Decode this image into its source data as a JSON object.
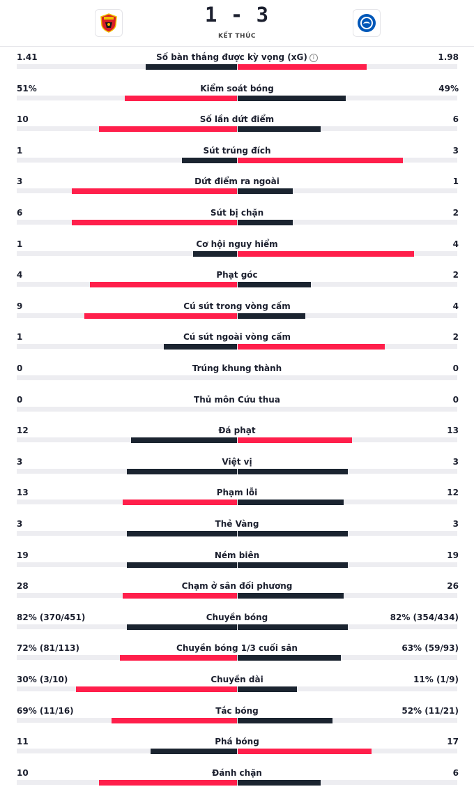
{
  "header": {
    "score": "1 - 3",
    "status": "KẾT THÚC",
    "home_logo_icon": "manchester-united-crest-icon",
    "away_logo_icon": "brighton-crest-icon"
  },
  "colors": {
    "highlight": "#ff1f4b",
    "neutral": "#1b2430",
    "track": "#ededf1"
  },
  "stats": [
    {
      "label": "Số bàn thắng được kỳ vọng (xG)",
      "home": "1.41",
      "away": "1.98",
      "home_share": 0.416,
      "away_share": 0.584,
      "winner": "away",
      "info": true
    },
    {
      "label": "Kiểm soát bóng",
      "home": "51%",
      "away": "49%",
      "home_share": 0.51,
      "away_share": 0.49,
      "winner": "home"
    },
    {
      "label": "Số lần dứt điểm",
      "home": "10",
      "away": "6",
      "home_share": 0.625,
      "away_share": 0.375,
      "winner": "home"
    },
    {
      "label": "Sút trúng đích",
      "home": "1",
      "away": "3",
      "home_share": 0.25,
      "away_share": 0.75,
      "winner": "away"
    },
    {
      "label": "Dứt điểm ra ngoài",
      "home": "3",
      "away": "1",
      "home_share": 0.75,
      "away_share": 0.25,
      "winner": "home"
    },
    {
      "label": "Sút bị chặn",
      "home": "6",
      "away": "2",
      "home_share": 0.75,
      "away_share": 0.25,
      "winner": "home"
    },
    {
      "label": "Cơ hội nguy hiểm",
      "home": "1",
      "away": "4",
      "home_share": 0.2,
      "away_share": 0.8,
      "winner": "away"
    },
    {
      "label": "Phạt góc",
      "home": "4",
      "away": "2",
      "home_share": 0.667,
      "away_share": 0.333,
      "winner": "home"
    },
    {
      "label": "Cú sút trong vòng cấm",
      "home": "9",
      "away": "4",
      "home_share": 0.692,
      "away_share": 0.308,
      "winner": "home"
    },
    {
      "label": "Cú sút ngoài vòng cấm",
      "home": "1",
      "away": "2",
      "home_share": 0.333,
      "away_share": 0.667,
      "winner": "away"
    },
    {
      "label": "Trúng khung thành",
      "home": "0",
      "away": "0",
      "home_share": 0,
      "away_share": 0,
      "winner": "tie"
    },
    {
      "label": "Thủ môn Cứu thua",
      "home": "0",
      "away": "0",
      "home_share": 0,
      "away_share": 0,
      "winner": "tie"
    },
    {
      "label": "Đá phạt",
      "home": "12",
      "away": "13",
      "home_share": 0.48,
      "away_share": 0.52,
      "winner": "away"
    },
    {
      "label": "Việt vị",
      "home": "3",
      "away": "3",
      "home_share": 0.5,
      "away_share": 0.5,
      "winner": "tie"
    },
    {
      "label": "Phạm lỗi",
      "home": "13",
      "away": "12",
      "home_share": 0.52,
      "away_share": 0.48,
      "winner": "home"
    },
    {
      "label": "Thẻ Vàng",
      "home": "3",
      "away": "3",
      "home_share": 0.5,
      "away_share": 0.5,
      "winner": "tie"
    },
    {
      "label": "Ném biên",
      "home": "19",
      "away": "19",
      "home_share": 0.5,
      "away_share": 0.5,
      "winner": "tie"
    },
    {
      "label": "Chạm ở sân đối phương",
      "home": "28",
      "away": "26",
      "home_share": 0.519,
      "away_share": 0.481,
      "winner": "home"
    },
    {
      "label": "Chuyền bóng",
      "home": "82% (370/451)",
      "away": "82% (354/434)",
      "home_share": 0.5,
      "away_share": 0.5,
      "winner": "tie"
    },
    {
      "label": "Chuyền bóng 1/3 cuối sân",
      "home": "72% (81/113)",
      "away": "63% (59/93)",
      "home_share": 0.533,
      "away_share": 0.467,
      "winner": "home"
    },
    {
      "label": "Chuyền dài",
      "home": "30% (3/10)",
      "away": "11% (1/9)",
      "home_share": 0.732,
      "away_share": 0.268,
      "winner": "home"
    },
    {
      "label": "Tắc bóng",
      "home": "69% (11/16)",
      "away": "52% (11/21)",
      "home_share": 0.57,
      "away_share": 0.43,
      "winner": "home"
    },
    {
      "label": "Phá bóng",
      "home": "11",
      "away": "17",
      "home_share": 0.393,
      "away_share": 0.607,
      "winner": "away"
    },
    {
      "label": "Đánh chặn",
      "home": "10",
      "away": "6",
      "home_share": 0.625,
      "away_share": 0.375,
      "winner": "home"
    }
  ]
}
